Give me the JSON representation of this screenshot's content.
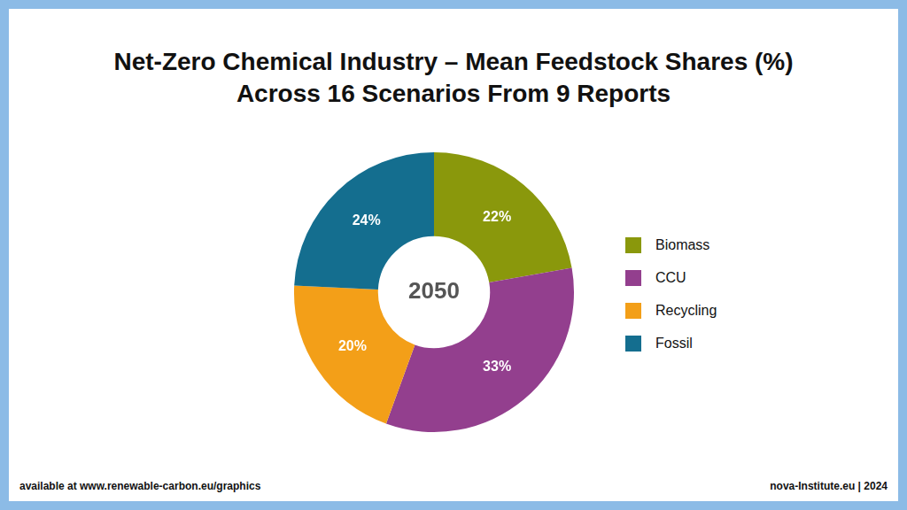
{
  "chart_data": {
    "type": "doughnut",
    "title": [
      "Net-Zero Chemical Industry – Mean Feedstock Shares (%)",
      "Across 16 Scenarios From 9 Reports"
    ],
    "categories": [
      "Biomass",
      "CCU",
      "Recycling",
      "Fossil"
    ],
    "values": [
      22,
      33,
      20,
      24
    ],
    "value_labels": [
      "22%",
      "33%",
      "20%",
      "24%"
    ],
    "colors": [
      "#8a980c",
      "#933f8e",
      "#f39f18",
      "#146e8f"
    ],
    "data_labels": true,
    "legend": "right",
    "annotations": [
      "2050"
    ]
  },
  "footer": {
    "left": "available at www.renewable-carbon.eu/graphics",
    "right": "nova-Institute.eu | 2024"
  }
}
